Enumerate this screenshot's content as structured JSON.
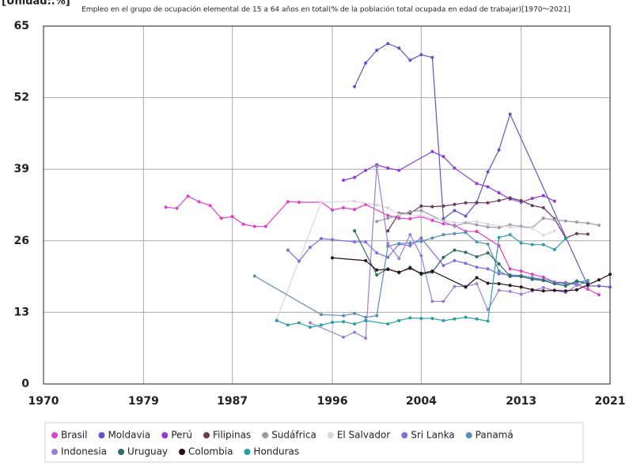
{
  "chart_data": {
    "type": "line",
    "unit": "[Unidad:.%]",
    "title": "Empleo en el grupo de ocupación elemental de 15 a 64 años en total(% de la población total ocupada en edad de trabajar)[1970〜2021]",
    "xlim": [
      1970,
      2021
    ],
    "xticks": [
      1970,
      1979,
      1987,
      1996,
      2004,
      2013,
      2021
    ],
    "ylim": [
      0,
      65
    ],
    "yticks": [
      0,
      13,
      26,
      39,
      52,
      65
    ],
    "grid": true,
    "series": [
      {
        "name": "Brasil",
        "color": "#e040c8",
        "x": [
          1981,
          1982,
          1983,
          1984,
          1985,
          1986,
          1987,
          1988,
          1989,
          1990,
          1992,
          1993,
          1995,
          1996,
          1997,
          1998,
          1999,
          2001,
          2002,
          2003,
          2004,
          2005,
          2006,
          2007,
          2008,
          2009,
          2011,
          2012,
          2013,
          2014,
          2015,
          2016,
          2017,
          2018,
          2019,
          2020
        ],
        "values": [
          32.1,
          31.9,
          34.1,
          33.1,
          32.4,
          30.1,
          30.4,
          29.0,
          28.6,
          28.6,
          33.1,
          33.0,
          33.0,
          31.6,
          32.0,
          31.7,
          32.6,
          30.6,
          30.1,
          30.0,
          30.4,
          29.7,
          29.1,
          28.8,
          27.7,
          27.7,
          25.1,
          20.9,
          20.5,
          19.9,
          19.4,
          18.5,
          18.4,
          18.1,
          17.2,
          16.2
        ]
      },
      {
        "name": "Moldavia",
        "color": "#5858c8",
        "x": [
          1998,
          1999,
          2000,
          2001,
          2002,
          2003,
          2004,
          2005,
          2006,
          2007,
          2008,
          2009,
          2010,
          2011,
          2012,
          2019,
          2020,
          2021
        ],
        "values": [
          54.0,
          58.3,
          60.6,
          61.8,
          61.0,
          58.8,
          59.8,
          59.3,
          30.0,
          31.5,
          30.5,
          33.0,
          38.5,
          42.5,
          49.0,
          17.8,
          17.8,
          17.6
        ]
      },
      {
        "name": "Perú",
        "color": "#8e3ad6",
        "x": [
          1997,
          1998,
          1999,
          2000,
          2001,
          2002,
          2005,
          2006,
          2007,
          2009,
          2010,
          2011,
          2012,
          2013,
          2014,
          2015,
          2016
        ],
        "values": [
          37.0,
          37.5,
          38.8,
          39.8,
          39.2,
          38.8,
          42.2,
          41.3,
          39.2,
          36.4,
          35.8,
          34.7,
          33.6,
          33.0,
          33.7,
          34.2,
          33.2
        ]
      },
      {
        "name": "Filipinas",
        "color": "#6b3a5a",
        "x": [
          2001,
          2002,
          2003,
          2004,
          2005,
          2006,
          2007,
          2008,
          2009,
          2010,
          2011,
          2012,
          2013,
          2014,
          2015,
          2016,
          2017,
          2018,
          2019
        ],
        "values": [
          27.8,
          31.0,
          31.0,
          32.3,
          32.2,
          32.3,
          32.6,
          32.9,
          32.9,
          32.9,
          33.3,
          33.8,
          33.3,
          32.4,
          32.0,
          30.0,
          26.5,
          27.3,
          27.2
        ]
      },
      {
        "name": "Sudáfrica",
        "color": "#9a9aa8",
        "x": [
          2000,
          2001,
          2002,
          2003,
          2004,
          2007,
          2008,
          2009,
          2010,
          2011,
          2012,
          2013,
          2014,
          2015,
          2016,
          2017,
          2018,
          2019,
          2020
        ],
        "values": [
          29.5,
          30.1,
          30.6,
          31.3,
          31.5,
          28.6,
          29.3,
          28.9,
          28.5,
          28.4,
          28.9,
          28.6,
          28.4,
          30.1,
          29.8,
          29.6,
          29.4,
          29.2,
          28.8
        ]
      },
      {
        "name": "El Salvador",
        "color": "#ddd6dd",
        "x": [
          1991,
          1995,
          1998,
          2000,
          2001,
          2002,
          2004,
          2007,
          2009,
          2010,
          2012,
          2014,
          2015,
          2016
        ],
        "values": [
          11.8,
          33.0,
          33.2,
          32.5,
          32.0,
          30.8,
          30.6,
          29.3,
          29.5,
          29.0,
          28.5,
          28.3,
          27.0,
          27.8
        ]
      },
      {
        "name": "Sri Lanka",
        "color": "#7b70e0",
        "x": [
          1992,
          1993,
          1994,
          1995,
          1996,
          1998,
          1999,
          2000,
          2001,
          2002,
          2003,
          2004,
          2006,
          2007,
          2008,
          2009,
          2010,
          2011,
          2012,
          2013,
          2014,
          2015,
          2016,
          2017,
          2018,
          2019
        ],
        "values": [
          24.3,
          22.3,
          24.8,
          26.4,
          26.2,
          25.8,
          25.8,
          23.8,
          23.0,
          25.4,
          25.1,
          26.5,
          21.5,
          22.4,
          21.9,
          21.2,
          20.9,
          20.0,
          19.8,
          19.7,
          19.2,
          18.8,
          18.2,
          18.4,
          18.0,
          18.5
        ]
      },
      {
        "name": "Panamá",
        "color": "#5b8fb0",
        "x": [
          1989,
          1995,
          1997,
          1998,
          1999,
          2000,
          2001,
          2002,
          2003,
          2004,
          2005,
          2006,
          2007,
          2008,
          2009,
          2010,
          2011,
          2012,
          2013,
          2014,
          2015,
          2016,
          2017,
          2018,
          2019
        ],
        "values": [
          19.6,
          12.6,
          12.4,
          12.8,
          12.1,
          12.4,
          25.0,
          25.5,
          25.6,
          25.9,
          26.5,
          27.1,
          27.3,
          27.5,
          25.8,
          25.4,
          20.5,
          19.5,
          19.7,
          19.3,
          19.0,
          18.5,
          18.1,
          18.4,
          18.8
        ]
      },
      {
        "name": "Indonesia",
        "color": "#9a80d8",
        "x": [
          1994,
          1997,
          1998,
          1999,
          2000,
          2001,
          2002,
          2003,
          2004,
          2005,
          2006,
          2007,
          2008,
          2009,
          2010,
          2011,
          2012,
          2013,
          2014,
          2015,
          2016,
          2017,
          2018
        ],
        "values": [
          11.1,
          8.5,
          9.4,
          8.3,
          39.5,
          25.5,
          22.8,
          27.1,
          23.3,
          15.0,
          15.0,
          17.7,
          17.7,
          18.2,
          13.5,
          17.0,
          16.8,
          16.3,
          16.9,
          17.5,
          17.0,
          16.6,
          17.9
        ]
      },
      {
        "name": "Uruguay",
        "color": "#2e6b62",
        "x": [
          1998,
          2000,
          2001,
          2002,
          2003,
          2004,
          2005,
          2006,
          2007,
          2008,
          2009,
          2010,
          2011,
          2012,
          2013,
          2014,
          2015,
          2016,
          2017,
          2018,
          2019
        ],
        "values": [
          27.8,
          19.8,
          20.9,
          20.2,
          21.2,
          19.9,
          20.3,
          23.0,
          24.3,
          23.9,
          23.1,
          23.8,
          21.8,
          19.6,
          19.5,
          19.0,
          18.8,
          18.2,
          17.8,
          18.7,
          18.2
        ]
      },
      {
        "name": "Colombia",
        "color": "#2a0f1a",
        "x": [
          1996,
          1999,
          2000,
          2001,
          2002,
          2003,
          2004,
          2005,
          2008,
          2009,
          2010,
          2011,
          2012,
          2013,
          2014,
          2015,
          2016,
          2017,
          2018,
          2019,
          2020,
          2021
        ],
        "values": [
          22.9,
          22.4,
          20.7,
          20.8,
          20.3,
          21.0,
          20.1,
          20.5,
          17.6,
          19.3,
          18.3,
          18.2,
          17.9,
          17.6,
          17.1,
          16.9,
          17.0,
          16.9,
          17.1,
          18.0,
          18.9,
          19.9
        ]
      },
      {
        "name": "Honduras",
        "color": "#2a9ea8",
        "x": [
          1991,
          1992,
          1993,
          1994,
          1995,
          1996,
          1997,
          1998,
          1999,
          2001,
          2002,
          2003,
          2004,
          2005,
          2006,
          2007,
          2008,
          2009,
          2010,
          2011,
          2012,
          2013,
          2014,
          2015,
          2016,
          2017
        ],
        "values": [
          11.5,
          10.7,
          11.1,
          10.3,
          10.7,
          11.2,
          11.3,
          10.9,
          11.5,
          10.9,
          11.5,
          12.0,
          11.9,
          11.9,
          11.5,
          11.8,
          12.1,
          11.8,
          11.4,
          26.6,
          27.1,
          25.6,
          25.3,
          25.3,
          24.4,
          26.4
        ]
      }
    ]
  }
}
